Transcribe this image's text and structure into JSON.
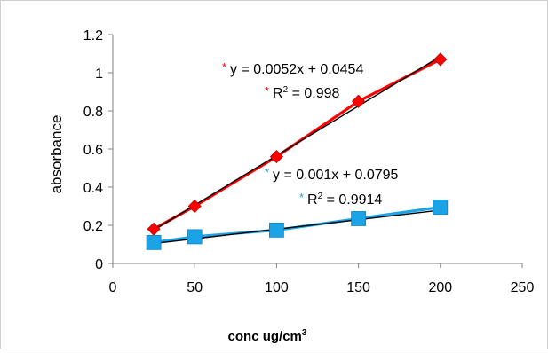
{
  "chart_data": {
    "type": "scatter",
    "xlabel": "conc ug/cm",
    "xlabel_sup": "3",
    "ylabel": "absorbance",
    "xlim": [
      0,
      250
    ],
    "ylim": [
      0,
      1.2
    ],
    "xticks": [
      "0",
      "50",
      "100",
      "150",
      "200",
      "250"
    ],
    "yticks": [
      "0",
      "0.2",
      "0.4",
      "0.6",
      "0.8",
      "1",
      "1.2"
    ],
    "grid": false,
    "series": [
      {
        "color": "#ff0000",
        "marker": "diamond",
        "x": [
          25,
          50,
          100,
          150,
          200
        ],
        "y": [
          0.18,
          0.3,
          0.56,
          0.85,
          1.07
        ],
        "trendline": {
          "slope": 0.0052,
          "intercept": 0.0454,
          "color": "#000000"
        },
        "equation_label": "y = 0.0052x + 0.0454",
        "r2_label": "R",
        "r2_sup": "2",
        "r2_value": " = 0.998",
        "label_marker_color": "#ff0000"
      },
      {
        "color": "#1aa3e6",
        "marker": "square",
        "x": [
          25,
          50,
          100,
          150,
          200
        ],
        "y": [
          0.11,
          0.14,
          0.175,
          0.235,
          0.295
        ],
        "trendline": {
          "slope": 0.001,
          "intercept": 0.0795,
          "color": "#000000"
        },
        "equation_label": "y = 0.001x + 0.0795",
        "r2_label": "R",
        "r2_sup": "2",
        "r2_value": " = 0.9914",
        "label_marker_color": "#1aa3e6"
      }
    ]
  }
}
